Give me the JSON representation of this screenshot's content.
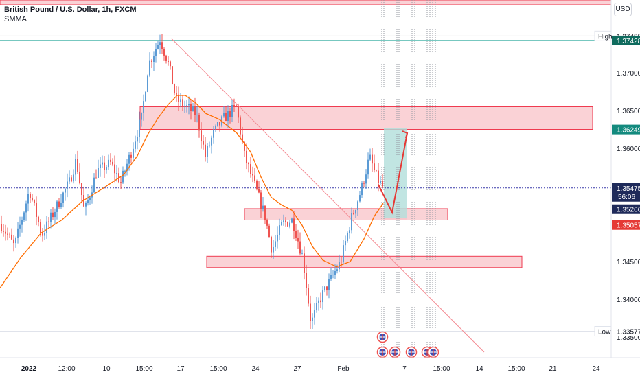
{
  "header": {
    "symbol_title": "British Pound / U.S. Dollar, 1h, FXCM",
    "indicator_label": "SMMA",
    "currency_button": "USD"
  },
  "colors": {
    "up": "#26a69a",
    "down": "#ef5350",
    "candle": "#5b9bd5",
    "smma": "#ff6d00",
    "zone_fill": "#f8c3c8",
    "zone_stroke": "#ef3b50",
    "target_fill": "#b2dfdb",
    "trendline": "#f48a92",
    "last_price": "#131722",
    "dotted_line": "#3a3aaa"
  },
  "chart_data": {
    "type": "candlestick",
    "title": "British Pound / U.S. Dollar, 1h, FXCM",
    "series": [
      {
        "name": "SMMA",
        "x_index": [
          0,
          30,
          60,
          90,
          120,
          150,
          180,
          200,
          215,
          230,
          245,
          258,
          270,
          285,
          300,
          320,
          345,
          365,
          380,
          395,
          410,
          425,
          440,
          455,
          470,
          490,
          510,
          530,
          545,
          558
        ],
        "values": [
          1.3415,
          1.3455,
          1.3488,
          1.3505,
          1.353,
          1.3547,
          1.3565,
          1.359,
          1.3618,
          1.364,
          1.3658,
          1.367,
          1.367,
          1.366,
          1.3646,
          1.3638,
          1.362,
          1.3595,
          1.3562,
          1.3535,
          1.3525,
          1.3518,
          1.3498,
          1.347,
          1.3452,
          1.3443,
          1.345,
          1.348,
          1.351,
          1.3527
        ]
      }
    ],
    "price_path": {
      "x_index": [
        0,
        20,
        42,
        60,
        80,
        100,
        110,
        122,
        140,
        160,
        175,
        190,
        205,
        215,
        232,
        245,
        255,
        270,
        285,
        298,
        310,
        325,
        343,
        355,
        372,
        385,
        395,
        410,
        425,
        440,
        452,
        465,
        480,
        495,
        510,
        525,
        537,
        548,
        557
      ],
      "values": [
        1.35,
        1.347,
        1.3545,
        1.3485,
        1.352,
        1.3555,
        1.3585,
        1.3515,
        1.357,
        1.358,
        1.3555,
        1.3595,
        1.364,
        1.371,
        1.3745,
        1.371,
        1.3665,
        1.3655,
        1.3645,
        1.359,
        1.362,
        1.364,
        1.3655,
        1.359,
        1.3545,
        1.351,
        1.3465,
        1.35,
        1.3505,
        1.3455,
        1.3368,
        1.34,
        1.3425,
        1.345,
        1.3505,
        1.3545,
        1.3588,
        1.356,
        1.35475
      ]
    },
    "y_axis": {
      "min": 1.333,
      "max": 1.379,
      "tick_labels": [
        "1.37000",
        "1.36500",
        "1.36000",
        "1.34500",
        "1.34000",
        "1.33500"
      ],
      "tick_values": [
        1.37,
        1.365,
        1.36,
        1.345,
        1.34,
        1.335
      ]
    },
    "x_axis": {
      "tick_labels": [
        "2022",
        "12:00",
        "10",
        "15:00",
        "17",
        "15:00",
        "24",
        "27",
        "Feb",
        "7",
        "15:00",
        "14",
        "15:00",
        "21",
        "24"
      ],
      "tick_x_index": [
        42,
        97,
        155,
        210,
        263,
        318,
        372,
        433,
        500,
        589,
        643,
        698,
        752,
        805,
        868
      ]
    },
    "price_labels": {
      "high_label": "High",
      "high_value": "1.37488",
      "line_value": "1.37428",
      "target_value": "1.36249",
      "last_value": "1.35475",
      "countdown": "56:06",
      "entry_value": "1.35266",
      "stop_value": "1.35057",
      "low_label": "Low",
      "low_value": "1.33577"
    },
    "levels": {
      "high": 1.37488,
      "horizontal_line": 1.37428,
      "target": 1.36249,
      "last": 1.35475,
      "entry": 1.35266,
      "stop": 1.35057,
      "low": 1.33577
    },
    "zones": [
      {
        "name": "resistance-top",
        "price_top": 1.3845,
        "price_bottom": 1.379,
        "x_start_index": 0,
        "x_end_index": 890
      },
      {
        "name": "supply-zone",
        "price_top": 1.3655,
        "price_bottom": 1.3625,
        "x_start_index": 204,
        "x_end_index": 863
      },
      {
        "name": "entry-zone",
        "price_top": 1.352,
        "price_bottom": 1.3505,
        "x_start_index": 356,
        "x_end_index": 652
      },
      {
        "name": "demand-zone",
        "price_top": 1.3457,
        "price_bottom": 1.3442,
        "x_start_index": 301,
        "x_end_index": 760
      }
    ],
    "target_box": {
      "price_top": 1.3627,
      "price_bottom": 1.3508,
      "x_start_index": 559,
      "x_end_index": 593
    },
    "trendline": {
      "x_start_index": 250,
      "price_start": 1.3745,
      "x_end_index": 705,
      "price_end": 1.333
    },
    "projection": {
      "x_index": [
        551,
        571,
        593
      ],
      "values": [
        1.3552,
        1.3515,
        1.362
      ]
    },
    "vertical_markers": {
      "x_index": [
        556,
        559,
        578,
        581,
        600,
        604,
        622,
        626,
        630,
        634
      ]
    },
    "event_icons": {
      "x_index": [
        557,
        557,
        575,
        599,
        622,
        631
      ],
      "rows": [
        0,
        1,
        1,
        1,
        1,
        1
      ]
    }
  }
}
